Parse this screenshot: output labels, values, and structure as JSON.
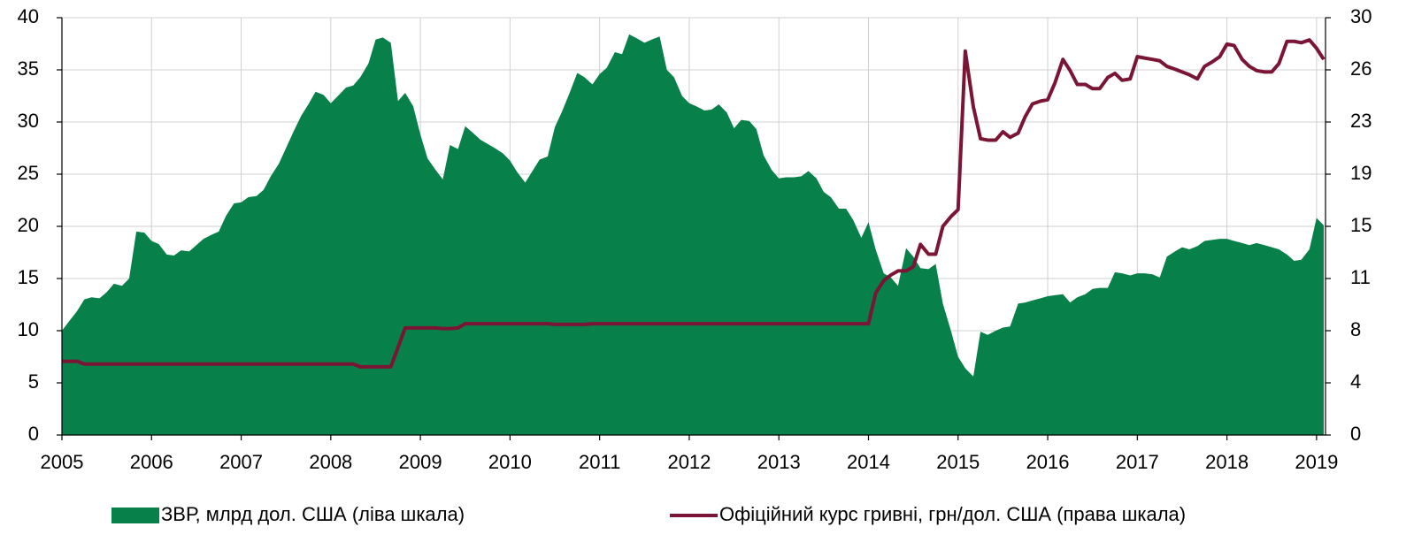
{
  "chart_data": {
    "type": "area-line",
    "x": [
      2005,
      2005.08,
      2005.17,
      2005.25,
      2005.33,
      2005.42,
      2005.5,
      2005.58,
      2005.67,
      2005.75,
      2005.83,
      2005.92,
      2006,
      2006.08,
      2006.17,
      2006.25,
      2006.33,
      2006.42,
      2006.5,
      2006.58,
      2006.67,
      2006.75,
      2006.83,
      2006.92,
      2007,
      2007.08,
      2007.17,
      2007.25,
      2007.33,
      2007.42,
      2007.5,
      2007.58,
      2007.67,
      2007.75,
      2007.83,
      2007.92,
      2008,
      2008.08,
      2008.17,
      2008.25,
      2008.33,
      2008.42,
      2008.5,
      2008.58,
      2008.67,
      2008.75,
      2008.83,
      2008.92,
      2009,
      2009.08,
      2009.17,
      2009.25,
      2009.33,
      2009.42,
      2009.5,
      2009.58,
      2009.67,
      2009.75,
      2009.83,
      2009.92,
      2010,
      2010.08,
      2010.17,
      2010.25,
      2010.33,
      2010.42,
      2010.5,
      2010.58,
      2010.67,
      2010.75,
      2010.83,
      2010.92,
      2011,
      2011.08,
      2011.17,
      2011.25,
      2011.33,
      2011.42,
      2011.5,
      2011.58,
      2011.67,
      2011.75,
      2011.83,
      2011.92,
      2012,
      2012.08,
      2012.17,
      2012.25,
      2012.33,
      2012.42,
      2012.5,
      2012.58,
      2012.67,
      2012.75,
      2012.83,
      2012.92,
      2013,
      2013.08,
      2013.17,
      2013.25,
      2013.33,
      2013.42,
      2013.5,
      2013.58,
      2013.67,
      2013.75,
      2013.83,
      2013.92,
      2014,
      2014.08,
      2014.17,
      2014.25,
      2014.33,
      2014.42,
      2014.5,
      2014.58,
      2014.67,
      2014.75,
      2014.83,
      2014.92,
      2015,
      2015.08,
      2015.17,
      2015.25,
      2015.33,
      2015.42,
      2015.5,
      2015.58,
      2015.67,
      2015.75,
      2015.83,
      2015.92,
      2016,
      2016.08,
      2016.17,
      2016.25,
      2016.33,
      2016.42,
      2016.5,
      2016.58,
      2016.67,
      2016.75,
      2016.83,
      2016.92,
      2017,
      2017.08,
      2017.17,
      2017.25,
      2017.33,
      2017.42,
      2017.5,
      2017.58,
      2017.67,
      2017.75,
      2017.83,
      2017.92,
      2018,
      2018.08,
      2018.17,
      2018.25,
      2018.33,
      2018.42,
      2018.5,
      2018.58,
      2018.67,
      2018.75,
      2018.83,
      2018.92,
      2019,
      2019.08
    ],
    "series": [
      {
        "name": "ЗВР, млрд дол. США (ліва шкала)",
        "type": "area",
        "color": "#078149",
        "values": [
          10.0,
          10.9,
          11.9,
          13.0,
          13.2,
          13.1,
          13.7,
          14.5,
          14.3,
          15.0,
          19.5,
          19.4,
          18.6,
          18.3,
          17.3,
          17.2,
          17.7,
          17.6,
          18.2,
          18.8,
          19.2,
          19.5,
          21.0,
          22.2,
          22.3,
          22.8,
          22.9,
          23.5,
          24.8,
          26.0,
          27.5,
          29.0,
          30.6,
          31.7,
          32.9,
          32.6,
          31.8,
          32.5,
          33.3,
          33.5,
          34.3,
          35.6,
          37.9,
          38.1,
          37.6,
          32.0,
          32.8,
          31.5,
          28.8,
          26.5,
          25.4,
          24.5,
          27.8,
          27.4,
          29.6,
          29.0,
          28.3,
          27.9,
          27.5,
          27.0,
          26.3,
          25.2,
          24.2,
          25.3,
          26.4,
          26.7,
          29.5,
          31.0,
          32.9,
          34.7,
          34.3,
          33.6,
          34.6,
          35.2,
          36.7,
          36.5,
          38.4,
          38.0,
          37.6,
          37.9,
          38.2,
          35.0,
          34.3,
          32.5,
          31.8,
          31.5,
          31.1,
          31.2,
          31.7,
          30.9,
          29.4,
          30.2,
          30.1,
          29.3,
          26.8,
          25.4,
          24.6,
          24.7,
          24.7,
          24.8,
          25.3,
          24.6,
          23.3,
          22.8,
          21.7,
          21.7,
          20.6,
          18.9,
          20.4,
          17.8,
          15.5,
          15.1,
          14.3,
          17.9,
          17.1,
          16.0,
          15.9,
          16.4,
          12.6,
          10.0,
          7.5,
          6.4,
          5.6,
          9.9,
          9.6,
          10.0,
          10.3,
          10.4,
          12.6,
          12.7,
          12.9,
          13.1,
          13.3,
          13.4,
          13.5,
          12.7,
          13.2,
          13.5,
          14.0,
          14.1,
          14.1,
          15.6,
          15.5,
          15.3,
          15.5,
          15.5,
          15.4,
          15.1,
          17.1,
          17.6,
          18.0,
          17.8,
          18.1,
          18.6,
          18.7,
          18.8,
          18.8,
          18.6,
          18.4,
          18.2,
          18.4,
          18.2,
          18.0,
          17.8,
          17.3,
          16.7,
          16.8,
          17.8,
          20.8,
          20.1
        ]
      },
      {
        "name": "Офіційний курс гривні, грн/дол. США (права шкала)",
        "type": "line",
        "axis": "y2",
        "color": "#7b1535",
        "values": [
          5.3,
          5.3,
          5.3,
          5.1,
          5.1,
          5.1,
          5.1,
          5.1,
          5.1,
          5.1,
          5.1,
          5.1,
          5.1,
          5.1,
          5.1,
          5.1,
          5.1,
          5.1,
          5.1,
          5.1,
          5.1,
          5.1,
          5.1,
          5.1,
          5.1,
          5.1,
          5.1,
          5.1,
          5.1,
          5.1,
          5.1,
          5.1,
          5.1,
          5.1,
          5.1,
          5.1,
          5.1,
          5.1,
          5.1,
          5.1,
          4.9,
          4.9,
          4.9,
          4.9,
          4.9,
          6.3,
          7.7,
          7.7,
          7.7,
          7.7,
          7.7,
          7.65,
          7.65,
          7.7,
          8.0,
          8.0,
          8.0,
          8.0,
          8.0,
          8.0,
          8.0,
          8.0,
          8.0,
          8.0,
          8.0,
          8.0,
          7.95,
          7.95,
          7.95,
          7.95,
          7.95,
          8.0,
          8.0,
          8.0,
          8.0,
          8.0,
          8.0,
          8.0,
          8.0,
          8.0,
          8.0,
          8.0,
          8.0,
          8.0,
          8.0,
          8.0,
          8.0,
          8.0,
          8.0,
          8.0,
          8.0,
          8.0,
          8.0,
          8.0,
          8.0,
          8.0,
          8.0,
          8.0,
          8.0,
          8.0,
          8.0,
          8.0,
          8.0,
          8.0,
          8.0,
          8.0,
          8.0,
          8.0,
          8.0,
          10.2,
          11.1,
          11.5,
          11.8,
          11.8,
          12.1,
          13.7,
          13.0,
          13.0,
          15.0,
          15.7,
          16.2,
          27.6,
          23.6,
          21.3,
          21.2,
          21.2,
          21.8,
          21.4,
          21.7,
          22.9,
          23.8,
          24.0,
          24.1,
          25.3,
          27.0,
          26.2,
          25.2,
          25.2,
          24.9,
          24.9,
          25.7,
          26.0,
          25.5,
          25.6,
          27.2,
          27.1,
          27.0,
          26.9,
          26.5,
          26.3,
          26.1,
          25.9,
          25.6,
          26.5,
          26.8,
          27.2,
          28.1,
          28.0,
          27.0,
          26.5,
          26.2,
          26.1,
          26.1,
          26.7,
          28.3,
          28.3,
          28.2,
          28.4,
          27.8,
          27.0
        ]
      }
    ],
    "xlim": [
      2005,
      2019.1
    ],
    "xticks": [
      2005,
      2006,
      2007,
      2008,
      2009,
      2010,
      2011,
      2012,
      2013,
      2014,
      2015,
      2016,
      2017,
      2018,
      2019
    ],
    "ylim": [
      0,
      40
    ],
    "yticks": [
      0,
      5,
      10,
      15,
      20,
      25,
      30,
      35,
      40
    ],
    "y2lim": [
      0,
      30
    ],
    "y2ticks": [
      0,
      {
        "value": 3.75,
        "label": "4"
      },
      {
        "value": 7.5,
        "label": "8"
      },
      {
        "value": 11.25,
        "label": "11"
      },
      15,
      {
        "value": 18.75,
        "label": "19"
      },
      {
        "value": 22.5,
        "label": "23"
      },
      {
        "value": 26.25,
        "label": "26"
      },
      30
    ],
    "grid": true,
    "legend": "bottom"
  }
}
